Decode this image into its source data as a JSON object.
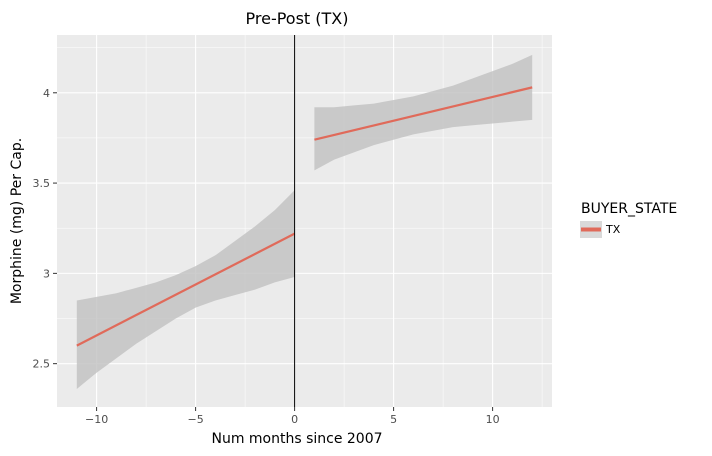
{
  "chart_data": {
    "type": "line",
    "title": "Pre-Post (TX)",
    "xlabel": "Num months since 2007",
    "ylabel": "Morphine (mg) Per Cap.",
    "xlim": [
      -12,
      13
    ],
    "ylim": [
      2.26,
      4.32
    ],
    "x_ticks": [
      -10,
      -5,
      0,
      5,
      10
    ],
    "x_tick_labels": [
      "−10",
      "−5",
      "0",
      "5",
      "10"
    ],
    "y_ticks": [
      2.5,
      3,
      3.5,
      4
    ],
    "y_tick_labels": [
      "2.5",
      "3",
      "3.5",
      "4"
    ],
    "grid": true,
    "vertical_line_x": 0,
    "legend": {
      "title": "BUYER_STATE",
      "placement": "right",
      "entries": [
        {
          "label": "TX",
          "color": "#e06a5a"
        }
      ]
    },
    "series": [
      {
        "name": "TX",
        "color": "#e06a5a",
        "segments": [
          {
            "x": [
              -11,
              0
            ],
            "y": [
              2.6,
              3.22
            ],
            "band_x": [
              -11,
              -10,
              -9,
              -8,
              -7,
              -6,
              -5,
              -4,
              -3,
              -2,
              -1,
              0
            ],
            "band_upper": [
              2.85,
              2.87,
              2.89,
              2.92,
              2.95,
              2.99,
              3.04,
              3.1,
              3.18,
              3.26,
              3.35,
              3.46
            ],
            "band_lower": [
              2.36,
              2.45,
              2.53,
              2.61,
              2.68,
              2.75,
              2.81,
              2.85,
              2.88,
              2.91,
              2.95,
              2.98
            ]
          },
          {
            "x": [
              1,
              12
            ],
            "y": [
              3.74,
              4.03
            ],
            "band_x": [
              1,
              2,
              3,
              4,
              5,
              6,
              7,
              8,
              9,
              10,
              11,
              12
            ],
            "band_upper": [
              3.92,
              3.92,
              3.93,
              3.94,
              3.96,
              3.98,
              4.01,
              4.04,
              4.08,
              4.12,
              4.16,
              4.21
            ],
            "band_lower": [
              3.57,
              3.63,
              3.67,
              3.71,
              3.74,
              3.77,
              3.79,
              3.81,
              3.82,
              3.83,
              3.84,
              3.85
            ]
          }
        ]
      }
    ],
    "colors": {
      "panel_background": "#ebebeb",
      "grid_major": "#ffffff",
      "band_fill": "#c0c0c0",
      "vline": "#000000"
    }
  }
}
